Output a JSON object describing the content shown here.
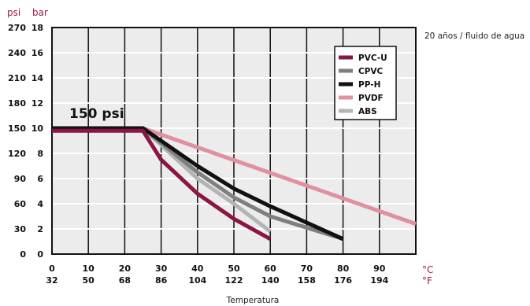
{
  "chart_data": {
    "type": "line",
    "note": "20 años / fluido de agua",
    "annotation": "150 psi",
    "xlabel": "Temperatura",
    "x_unit_c": "°C",
    "x_unit_f": "°F",
    "y_unit_left": "psi",
    "y_unit_right": "bar",
    "xlim": [
      0,
      100
    ],
    "ylim": [
      0,
      18
    ],
    "x_ticks_c": [
      "0",
      "10",
      "20",
      "30",
      "40",
      "50",
      "60",
      "70",
      "80",
      "90"
    ],
    "x_ticks_f": [
      "32",
      "50",
      "68",
      "86",
      "104",
      "122",
      "140",
      "158",
      "176",
      "194"
    ],
    "x_tick_values": [
      0,
      10,
      20,
      30,
      40,
      50,
      60,
      70,
      80,
      90
    ],
    "y_ticks_psi": [
      "0",
      "30",
      "60",
      "90",
      "120",
      "150",
      "180",
      "210",
      "240",
      "270"
    ],
    "y_ticks_bar": [
      "0",
      "2",
      "4",
      "6",
      "8",
      "10",
      "12",
      "14",
      "16",
      "18"
    ],
    "y_tick_values": [
      0,
      2,
      4,
      6,
      8,
      10,
      12,
      14,
      16,
      18
    ],
    "legend_position": "top-right",
    "series": [
      {
        "name": "PVDF",
        "color": "#e0909e",
        "x": [
          0,
          25,
          100
        ],
        "y": [
          10,
          10,
          2.4
        ]
      },
      {
        "name": "ABS",
        "color": "#b4b4b4",
        "x": [
          0,
          25,
          40,
          50,
          60
        ],
        "y": [
          10,
          10,
          6,
          4,
          1.8
        ]
      },
      {
        "name": "CPVC",
        "color": "#7f7f7f",
        "x": [
          0,
          25,
          40,
          50,
          60,
          80
        ],
        "y": [
          10,
          10,
          6.5,
          4.5,
          3,
          1.2
        ]
      },
      {
        "name": "PP-H",
        "color": "#111111",
        "x": [
          0,
          25,
          40,
          50,
          60,
          80
        ],
        "y": [
          10,
          10,
          7,
          5.2,
          3.8,
          1.2
        ]
      },
      {
        "name": "PVC-U",
        "color": "#8b1544",
        "x": [
          0,
          25,
          30,
          40,
          50,
          60
        ],
        "y": [
          9.8,
          9.8,
          7.5,
          4.8,
          2.8,
          1.2
        ]
      }
    ],
    "legend_order": [
      "PVC-U",
      "CPVC",
      "PP-H",
      "PVDF",
      "ABS"
    ]
  }
}
